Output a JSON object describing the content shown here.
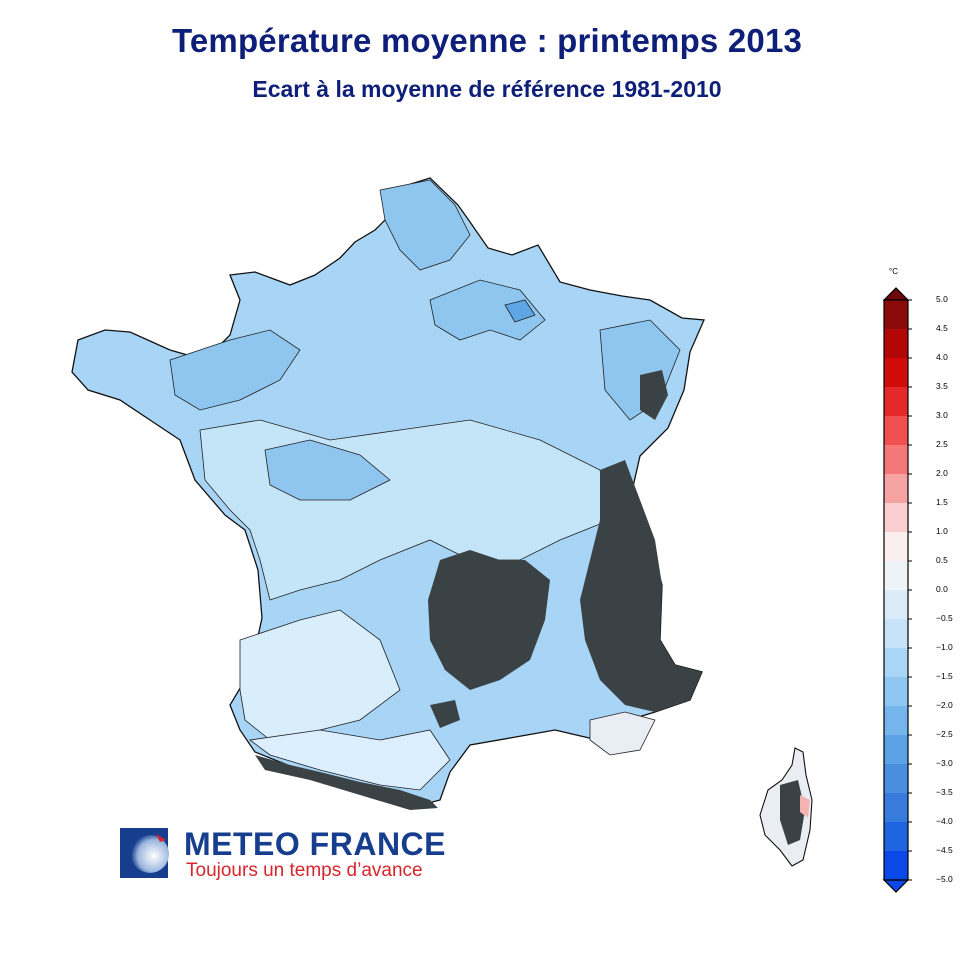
{
  "title": "Température moyenne : printemps 2013",
  "subtitle": "Ecart à la moyenne de référence 1981-2010",
  "legend": {
    "unit": "°C",
    "ticks": [
      "5.0",
      "4.5",
      "4.0",
      "3.5",
      "3.0",
      "2.5",
      "2.0",
      "1.5",
      "1.0",
      "0.5",
      "0.0",
      "−0.5",
      "−1.0",
      "−1.5",
      "−2.0",
      "−2.5",
      "−3.0",
      "−3.5",
      "−4.0",
      "−4.5",
      "−5.0"
    ],
    "colors": [
      "#6b0a0a",
      "#8c0a0a",
      "#b30606",
      "#d10a0a",
      "#e5282a",
      "#f05050",
      "#f57878",
      "#f7a3a3",
      "#fbcfcf",
      "#fbeeee",
      "#eef3f8",
      "#dcebf6",
      "#c8e3f7",
      "#a9d6f5",
      "#8ec7f1",
      "#74b6ec",
      "#5da1e6",
      "#4a8ee0",
      "#377bdc",
      "#2065e0",
      "#0b48e8"
    ]
  },
  "brand": {
    "name": "METEO FRANCE",
    "tagline": "Toujours un temps d’avance"
  }
}
